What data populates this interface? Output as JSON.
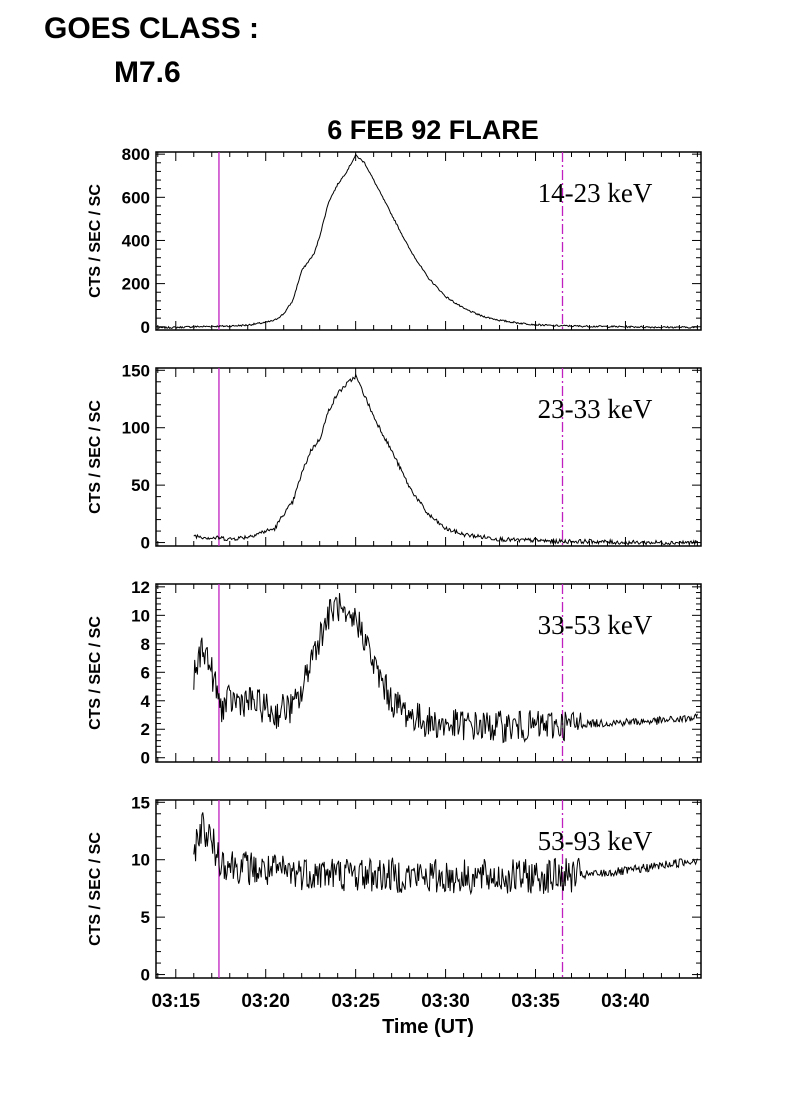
{
  "header": {
    "goes_label": "GOES CLASS :",
    "goes_value": "M7.6"
  },
  "colors": {
    "marker": "#c020c0",
    "trace": "#000000"
  },
  "chart_data": {
    "type": "line",
    "title": "6 FEB 92 FLARE",
    "xlabel": "Time (UT)",
    "x_tick_labels": [
      "03:15",
      "03:20",
      "03:25",
      "03:30",
      "03:35",
      "03:40"
    ],
    "x_tick_minutes": [
      15,
      20,
      25,
      30,
      35,
      40
    ],
    "xlim": [
      "03:13.9",
      "03:44.2"
    ],
    "vertical_markers": [
      {
        "time": "03:17.4",
        "style": "solid"
      },
      {
        "time": "03:36.5",
        "style": "dash-dot"
      }
    ],
    "panels": [
      {
        "band": "14-23 keV",
        "ylabel": "CTS / SEC / SC",
        "ylim": [
          -15,
          810
        ],
        "yticks": [
          0,
          200,
          400,
          600,
          800
        ],
        "series": [
          {
            "x": [
              "03:14",
              "03:15",
              "03:16",
              "03:17",
              "03:18",
              "03:19",
              "03:20",
              "03:20.5",
              "03:21",
              "03:21.5",
              "03:22",
              "03:22.7",
              "03:23",
              "03:23.5",
              "03:24",
              "03:24.5",
              "03:25",
              "03:25.5",
              "03:26",
              "03:27",
              "03:28",
              "03:29",
              "03:30",
              "03:31",
              "03:32",
              "03:33",
              "03:34",
              "03:35",
              "03:36",
              "03:38",
              "03:40",
              "03:42",
              "03:44"
            ],
            "y": [
              -5,
              -3,
              0,
              2,
              3,
              8,
              20,
              30,
              60,
              120,
              260,
              340,
              420,
              580,
              660,
              720,
              795,
              760,
              680,
              520,
              360,
              230,
              140,
              85,
              50,
              30,
              18,
              10,
              5,
              2,
              0,
              -2,
              -3
            ]
          }
        ]
      },
      {
        "band": "23-33 keV",
        "ylabel": "CTS / SEC / SC",
        "ylim": [
          -3,
          152
        ],
        "yticks": [
          0,
          50,
          100,
          150
        ],
        "series": [
          {
            "x": [
              "03:16",
              "03:16.5",
              "03:17",
              "03:17.5",
              "03:18",
              "03:19",
              "03:20",
              "03:20.5",
              "03:21",
              "03:21.5",
              "03:22",
              "03:22.5",
              "03:23",
              "03:23.5",
              "03:24",
              "03:24.5",
              "03:25",
              "03:25.5",
              "03:26",
              "03:27",
              "03:28",
              "03:29",
              "03:30",
              "03:31",
              "03:32",
              "03:33",
              "03:34",
              "03:35",
              "03:36",
              "03:38",
              "03:40",
              "03:42",
              "03:44"
            ],
            "y": [
              6,
              5,
              4,
              4,
              3,
              5,
              10,
              12,
              25,
              35,
              60,
              80,
              90,
              115,
              130,
              138,
              145,
              128,
              110,
              80,
              48,
              25,
              12,
              7,
              5,
              3,
              2,
              2,
              1,
              1,
              0,
              0,
              0
            ]
          }
        ]
      },
      {
        "band": "33-53 keV",
        "ylabel": "CTS / SEC / SC",
        "ylim": [
          -0.3,
          12.2
        ],
        "yticks": [
          0,
          2,
          4,
          6,
          8,
          10,
          12
        ],
        "series": [
          {
            "x": [
              "03:16",
              "03:16.5",
              "03:17",
              "03:17.5",
              "03:18",
              "03:19",
              "03:20",
              "03:20.5",
              "03:21",
              "03:21.5",
              "03:22",
              "03:22.5",
              "03:23",
              "03:23.5",
              "03:24",
              "03:24.5",
              "03:25",
              "03:25.5",
              "03:26",
              "03:27",
              "03:28",
              "03:29",
              "03:30",
              "03:31",
              "03:32",
              "03:33",
              "03:34",
              "03:35",
              "03:36",
              "03:37",
              "03:38",
              "03:40",
              "03:42",
              "03:44"
            ],
            "y": [
              5.5,
              8,
              6,
              3.5,
              4,
              4,
              3.5,
              3,
              3.5,
              3.5,
              4.5,
              7,
              8.5,
              10,
              10.8,
              9.2,
              9.8,
              8.5,
              6.5,
              4,
              3,
              2.5,
              2.3,
              2.3,
              2.2,
              2.2,
              2.2,
              2.2,
              2.3,
              2.3,
              2.4,
              2.5,
              2.6,
              2.8
            ]
          }
        ]
      },
      {
        "band": "53-93 keV",
        "ylabel": "CTS / SEC / SC",
        "ylim": [
          -0.3,
          15.2
        ],
        "yticks": [
          0,
          5,
          10,
          15
        ],
        "series": [
          {
            "x": [
              "03:16",
              "03:16.5",
              "03:17",
              "03:17.5",
              "03:18",
              "03:19",
              "03:20",
              "03:22",
              "03:24",
              "03:26",
              "03:28",
              "03:30",
              "03:32",
              "03:34",
              "03:36",
              "03:37",
              "03:38",
              "03:40",
              "03:42",
              "03:44"
            ],
            "y": [
              11,
              13,
              11.5,
              10,
              9.6,
              9.3,
              9,
              8.9,
              8.8,
              8.7,
              8.6,
              8.5,
              8.5,
              8.5,
              8.6,
              8.6,
              8.7,
              9.0,
              9.5,
              10.0
            ]
          }
        ]
      }
    ]
  }
}
